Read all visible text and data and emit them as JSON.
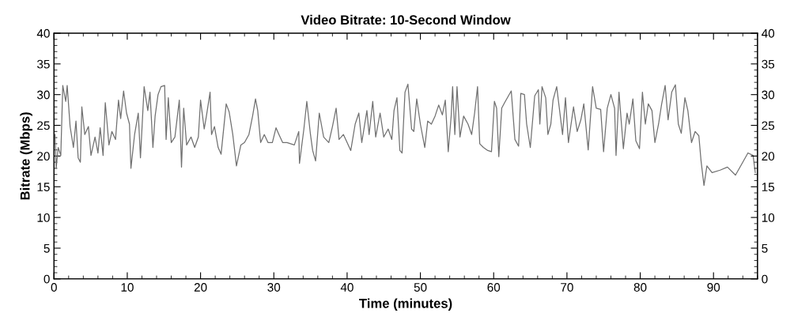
{
  "chart_data": {
    "type": "line",
    "title": "Video Bitrate: 10-Second Window",
    "xlabel": "Time (minutes)",
    "ylabel": "Bitrate (Mbps)",
    "xlim": [
      0,
      96
    ],
    "xticks": [
      0,
      10,
      20,
      30,
      40,
      50,
      60,
      70,
      80,
      90
    ],
    "ylim": [
      0,
      40
    ],
    "yticks": [
      0,
      5,
      10,
      15,
      20,
      25,
      30,
      35,
      40
    ],
    "y2lim": [
      0,
      40
    ],
    "y2ticks": [
      0,
      5,
      10,
      15,
      20,
      25,
      30,
      35,
      40
    ],
    "grid": false,
    "marker": "none",
    "line_style": "solid",
    "series": [
      {
        "color": "#707070",
        "x": [
          0.14,
          0.3,
          0.57,
          0.93,
          1.2,
          1.6,
          1.8,
          2.2,
          2.65,
          3.0,
          3.3,
          3.6,
          3.8,
          4.2,
          4.7,
          5.05,
          5.6,
          6.0,
          6.3,
          6.7,
          7.0,
          7.5,
          7.9,
          8.4,
          8.8,
          9.1,
          9.5,
          9.9,
          10.3,
          10.5,
          11.0,
          11.5,
          11.8,
          12.3,
          12.8,
          13.1,
          13.5,
          13.8,
          14.2,
          14.6,
          15.1,
          15.3,
          15.6,
          16.0,
          16.5,
          17.1,
          17.4,
          17.7,
          18.1,
          18.7,
          19.2,
          19.7,
          20.0,
          20.5,
          20.8,
          21.3,
          21.5,
          21.9,
          22.4,
          22.8,
          23.5,
          23.9,
          24.4,
          24.9,
          25.5,
          26.0,
          26.6,
          27.1,
          27.5,
          27.8,
          28.2,
          28.7,
          29.2,
          29.8,
          30.3,
          30.7,
          31.2,
          31.8,
          32.8,
          33.4,
          33.5,
          34.1,
          34.5,
          35.0,
          35.3,
          35.7,
          36.2,
          36.8,
          37.5,
          38.0,
          38.5,
          38.9,
          39.5,
          40.0,
          40.5,
          41.1,
          41.6,
          42.0,
          42.7,
          43.0,
          43.5,
          43.9,
          44.5,
          45.0,
          45.6,
          46.1,
          46.4,
          46.8,
          47.2,
          47.5,
          47.9,
          48.3,
          48.8,
          49.1,
          49.5,
          50.0,
          50.6,
          51.0,
          51.5,
          52.0,
          52.5,
          53.0,
          53.4,
          53.8,
          54.2,
          54.4,
          54.7,
          55.0,
          55.4,
          55.9,
          56.5,
          57.0,
          57.4,
          57.8,
          58.1,
          58.6,
          59.2,
          59.7,
          60.1,
          60.4,
          60.7,
          61.1,
          61.5,
          62.4,
          62.9,
          63.4,
          63.7,
          64.2,
          64.5,
          65.0,
          65.6,
          66.1,
          66.3,
          66.6,
          67.1,
          67.4,
          67.8,
          68.1,
          68.6,
          69.0,
          69.4,
          69.8,
          70.2,
          70.9,
          71.4,
          71.9,
          72.3,
          72.9,
          73.5,
          74.0,
          74.6,
          75.0,
          75.5,
          76.0,
          76.5,
          76.7,
          77.1,
          77.7,
          78.2,
          78.5,
          79.0,
          79.4,
          79.9,
          80.3,
          80.7,
          81.1,
          81.6,
          82.0,
          82.5,
          82.9,
          83.4,
          83.8,
          84.3,
          84.8,
          85.2,
          85.6,
          86.1,
          86.5,
          87.0,
          87.5,
          88.0,
          88.3,
          88.7,
          89.1,
          89.8,
          90.9,
          91.9,
          93.0,
          93.9,
          94.7,
          95.4,
          95.7
        ],
        "values": [
          23.5,
          18,
          21.4,
          20.1,
          31.5,
          28.9,
          31.5,
          24.8,
          21.4,
          25.7,
          19.7,
          19,
          28,
          23.5,
          24.8,
          20.1,
          23.1,
          20.5,
          24.6,
          20.1,
          28.7,
          21.8,
          24,
          22.7,
          29.1,
          26.1,
          30.6,
          27,
          25.2,
          18,
          23.5,
          27,
          19.7,
          31.3,
          27.4,
          30.4,
          21.4,
          26.5,
          30,
          31.3,
          31.5,
          22.7,
          29.5,
          22.2,
          23.1,
          29.1,
          18.2,
          27.8,
          21.8,
          23.1,
          21.4,
          23.1,
          29.1,
          24.4,
          26.5,
          30.4,
          23.5,
          24.8,
          21.4,
          20.3,
          28.5,
          27.2,
          23.5,
          18.4,
          21.8,
          22.2,
          23.5,
          26.5,
          29.3,
          27.4,
          22.2,
          23.5,
          22.2,
          22.2,
          24.6,
          23.5,
          22.2,
          22.2,
          21.8,
          24,
          18.8,
          24.4,
          28.9,
          23.5,
          20.9,
          19.2,
          27,
          23.1,
          22.2,
          24.8,
          27.8,
          22.7,
          23.5,
          22.2,
          20.9,
          25.2,
          27,
          22.2,
          27.4,
          23.5,
          28.9,
          23.1,
          27,
          23.1,
          24.4,
          22.7,
          27.4,
          29.5,
          20.9,
          20.5,
          30.4,
          31.7,
          24.4,
          24,
          29.3,
          25.2,
          21.4,
          25.7,
          25.2,
          26.5,
          28.3,
          26.7,
          29.1,
          20.7,
          26.5,
          31.3,
          23.5,
          31.3,
          23.1,
          26.5,
          25.2,
          23.5,
          27,
          31.3,
          22,
          21.4,
          20.9,
          20.7,
          28.9,
          27.8,
          19.9,
          27.8,
          28.7,
          30.6,
          22.7,
          21.6,
          30.2,
          30,
          25.2,
          21.4,
          29.8,
          30.8,
          25.2,
          31.3,
          29.5,
          23.5,
          25.2,
          29.1,
          31.3,
          27.4,
          23.5,
          29.5,
          22.2,
          28,
          24,
          25.9,
          28.5,
          21,
          31.3,
          27.8,
          27.6,
          20.7,
          27.8,
          30,
          27.8,
          20.1,
          30.4,
          21.2,
          27,
          25.2,
          29.3,
          22.5,
          21.2,
          30.4,
          25.2,
          28.5,
          27.4,
          22.2,
          25.2,
          28.3,
          31.5,
          25.9,
          30.4,
          31.6,
          25.2,
          23.7,
          29.5,
          27.4,
          22.2,
          24,
          23.3,
          19.2,
          15.2,
          18.4,
          17.3,
          17.7,
          18.2,
          16.9,
          18.8,
          20.5,
          20.1,
          17.3
        ]
      }
    ]
  }
}
